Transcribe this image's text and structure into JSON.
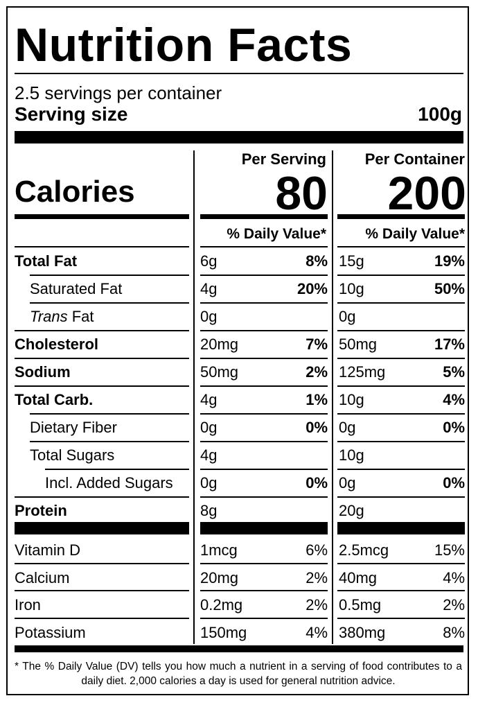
{
  "title": "Nutrition Facts",
  "servings_per_container": "2.5 servings per container",
  "serving_size": {
    "label": "Serving size",
    "value": "100g"
  },
  "columns": {
    "per_serving": "Per Serving",
    "per_container": "Per Container"
  },
  "calories": {
    "label": "Calories",
    "per_serving": "80",
    "per_container": "200"
  },
  "daily_value_header": "% Daily Value*",
  "nutrients": [
    {
      "label": "Total Fat",
      "bold": true,
      "indent": 0,
      "serving_amount": "6g",
      "serving_dv": "8%",
      "container_amount": "15g",
      "container_dv": "19%",
      "dv_bold": true
    },
    {
      "label": "Saturated Fat",
      "bold": false,
      "indent": 1,
      "serving_amount": "4g",
      "serving_dv": "20%",
      "container_amount": "10g",
      "container_dv": "50%",
      "dv_bold": true
    },
    {
      "label_italic": "Trans",
      "label": " Fat",
      "bold": false,
      "indent": 1,
      "serving_amount": "0g",
      "serving_dv": "",
      "container_amount": "0g",
      "container_dv": "",
      "dv_bold": true
    },
    {
      "label": "Cholesterol",
      "bold": true,
      "indent": 0,
      "serving_amount": "20mg",
      "serving_dv": "7%",
      "container_amount": "50mg",
      "container_dv": "17%",
      "dv_bold": true
    },
    {
      "label": "Sodium",
      "bold": true,
      "indent": 0,
      "serving_amount": "50mg",
      "serving_dv": "2%",
      "container_amount": "125mg",
      "container_dv": "5%",
      "dv_bold": true
    },
    {
      "label": "Total Carb.",
      "bold": true,
      "indent": 0,
      "serving_amount": "4g",
      "serving_dv": "1%",
      "container_amount": "10g",
      "container_dv": "4%",
      "dv_bold": true
    },
    {
      "label": "Dietary Fiber",
      "bold": false,
      "indent": 1,
      "serving_amount": "0g",
      "serving_dv": "0%",
      "container_amount": "0g",
      "container_dv": "0%",
      "dv_bold": true
    },
    {
      "label": "Total Sugars",
      "bold": false,
      "indent": 1,
      "serving_amount": "4g",
      "serving_dv": "",
      "container_amount": "10g",
      "container_dv": "",
      "dv_bold": true
    },
    {
      "label": "Incl. Added Sugars",
      "bold": false,
      "indent": 2,
      "serving_amount": "0g",
      "serving_dv": "0%",
      "container_amount": "0g",
      "container_dv": "0%",
      "dv_bold": true
    },
    {
      "label": "Protein",
      "bold": true,
      "indent": 0,
      "serving_amount": "8g",
      "serving_dv": "",
      "container_amount": "20g",
      "container_dv": "",
      "dv_bold": true
    }
  ],
  "vitamins": [
    {
      "label": "Vitamin D",
      "serving_amount": "1mcg",
      "serving_dv": "6%",
      "container_amount": "2.5mcg",
      "container_dv": "15%"
    },
    {
      "label": "Calcium",
      "serving_amount": "20mg",
      "serving_dv": "2%",
      "container_amount": "40mg",
      "container_dv": "4%"
    },
    {
      "label": "Iron",
      "serving_amount": "0.2mg",
      "serving_dv": "2%",
      "container_amount": "0.5mg",
      "container_dv": "2%"
    },
    {
      "label": "Potassium",
      "serving_amount": "150mg",
      "serving_dv": "4%",
      "container_amount": "380mg",
      "container_dv": "8%"
    }
  ],
  "footnote": "* The % Daily Value (DV) tells you how much a nutrient in a serving of food contributes to a daily diet. 2,000 calories a day is used for general nutrition advice."
}
